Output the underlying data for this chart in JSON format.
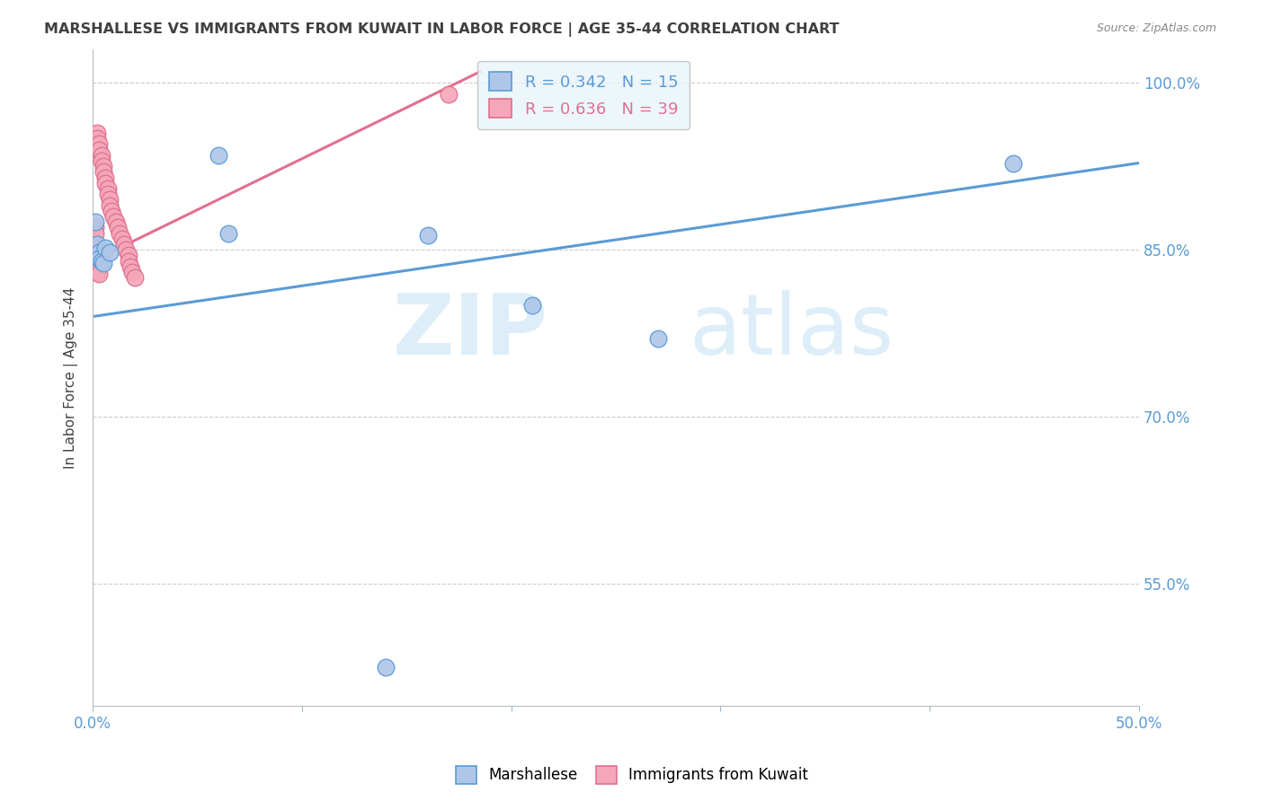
{
  "title": "MARSHALLESE VS IMMIGRANTS FROM KUWAIT IN LABOR FORCE | AGE 35-44 CORRELATION CHART",
  "source": "Source: ZipAtlas.com",
  "ylabel": "In Labor Force | Age 35-44",
  "yticks": [
    1.0,
    0.85,
    0.7,
    0.55
  ],
  "ytick_labels": [
    "100.0%",
    "85.0%",
    "70.0%",
    "55.0%"
  ],
  "xmin": 0.0,
  "xmax": 0.5,
  "ymin": 0.44,
  "ymax": 1.03,
  "blue_scatter_x": [
    0.001,
    0.002,
    0.003,
    0.003,
    0.004,
    0.005,
    0.006,
    0.008,
    0.06,
    0.065,
    0.16,
    0.21,
    0.27,
    0.44,
    0.14
  ],
  "blue_scatter_y": [
    0.875,
    0.855,
    0.848,
    0.842,
    0.84,
    0.838,
    0.852,
    0.848,
    0.935,
    0.865,
    0.863,
    0.8,
    0.77,
    0.928,
    0.475
  ],
  "pink_scatter_x": [
    0.001,
    0.001,
    0.002,
    0.002,
    0.003,
    0.003,
    0.004,
    0.004,
    0.005,
    0.005,
    0.006,
    0.006,
    0.007,
    0.007,
    0.008,
    0.008,
    0.009,
    0.01,
    0.011,
    0.012,
    0.013,
    0.014,
    0.015,
    0.016,
    0.017,
    0.017,
    0.018,
    0.019,
    0.02,
    0.001,
    0.001,
    0.002,
    0.002,
    0.001,
    0.001,
    0.002,
    0.002,
    0.003,
    0.17
  ],
  "pink_scatter_y": [
    0.87,
    0.865,
    0.955,
    0.95,
    0.945,
    0.94,
    0.935,
    0.93,
    0.925,
    0.92,
    0.915,
    0.91,
    0.905,
    0.9,
    0.895,
    0.89,
    0.885,
    0.88,
    0.875,
    0.87,
    0.865,
    0.86,
    0.855,
    0.85,
    0.845,
    0.84,
    0.835,
    0.83,
    0.825,
    0.852,
    0.848,
    0.844,
    0.842,
    0.838,
    0.835,
    0.832,
    0.83,
    0.828,
    0.99
  ],
  "blue_R": 0.342,
  "blue_N": 15,
  "pink_R": 0.636,
  "pink_N": 39,
  "blue_line_x0": 0.0,
  "blue_line_y0": 0.79,
  "blue_line_x1": 0.5,
  "blue_line_y1": 0.928,
  "pink_line_x0": 0.0,
  "pink_line_y0": 0.84,
  "pink_line_x1": 0.185,
  "pink_line_y1": 1.01,
  "blue_line_color": "#5b9bd5",
  "pink_line_color": "#e07090",
  "blue_scatter_color": "#aec6e8",
  "pink_scatter_color": "#f4a7b9",
  "legend_box_color": "#e8f4fb",
  "grid_color": "#cccccc",
  "title_color": "#404040",
  "axis_label_color": "#5b9bd5",
  "watermark_color": "#ddeef8"
}
